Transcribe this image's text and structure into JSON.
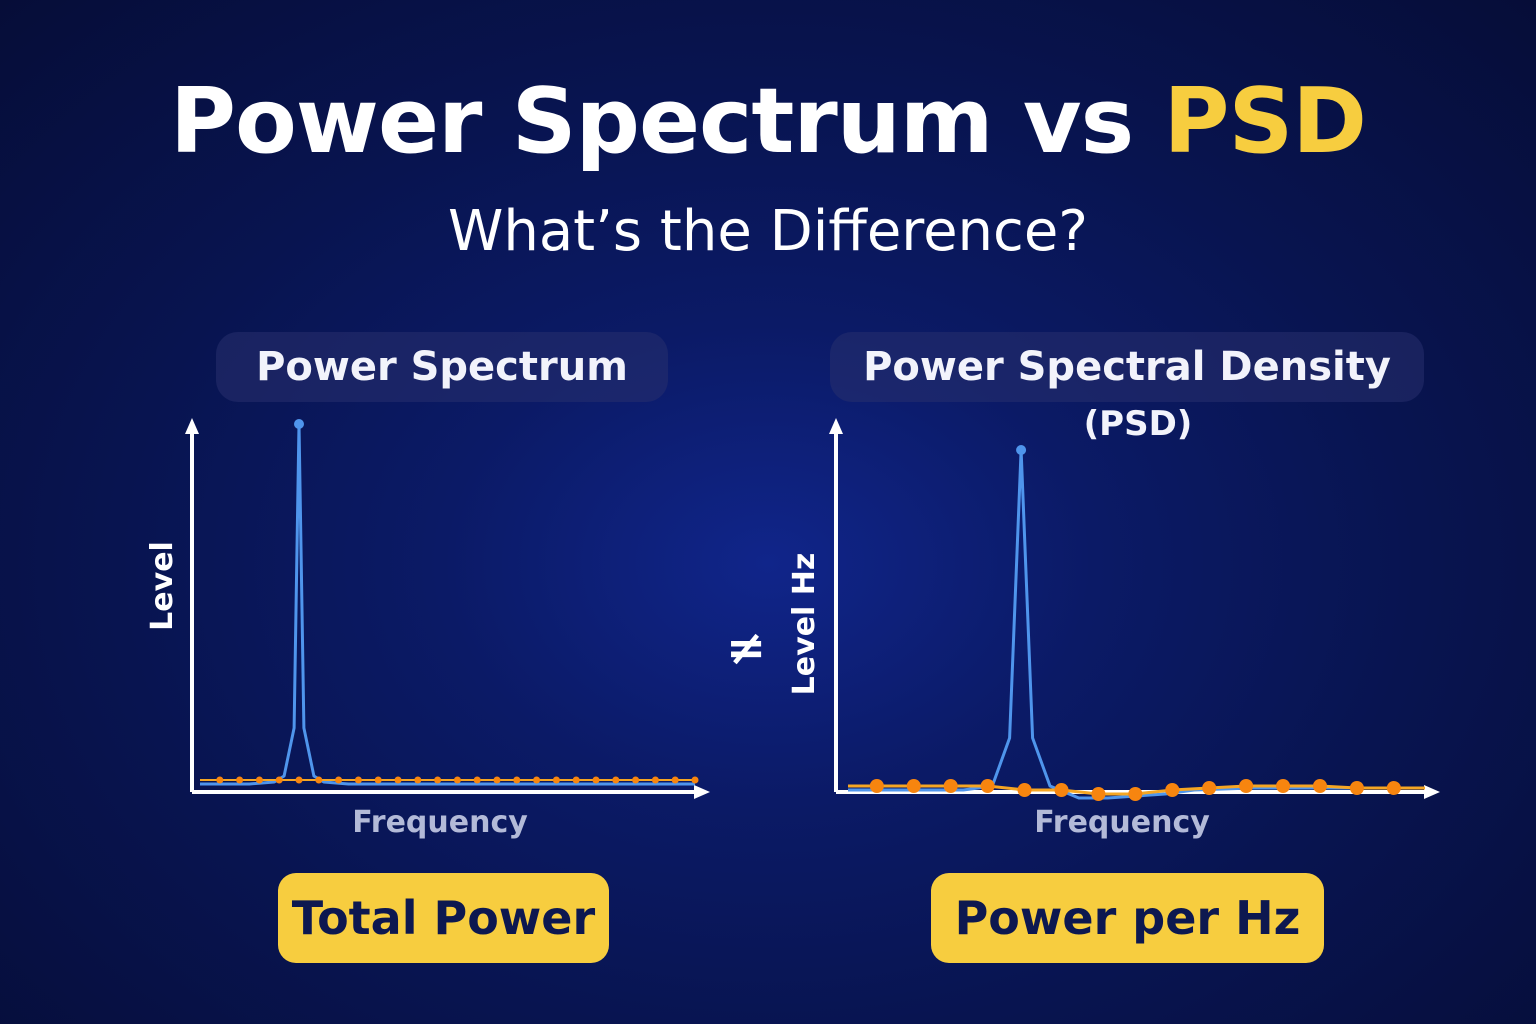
{
  "title": {
    "main": "Power Spectrum vs ",
    "accent": "PSD"
  },
  "subtitle": "What’s the Difference?",
  "panels": [
    {
      "header": "Power Spectrum",
      "y_label": "Level",
      "x_label": "Frequency",
      "badge": "Total Power"
    },
    {
      "header": "Power Spectral Density",
      "header_sub": "(PSD)",
      "y_label": "Level Hz",
      "x_label": "Frequency",
      "badge": "Power per Hz"
    }
  ],
  "comparison_symbol": "≠",
  "colors": {
    "background": "#0b1a66",
    "accent": "#f7cd3f",
    "spectrum_line": "#4f95ec",
    "floor_line": "#f5a623",
    "floor_points": "#f7850f"
  },
  "chart_data": [
    {
      "type": "line",
      "title": "Power Spectrum",
      "xlabel": "Frequency",
      "ylabel": "Level",
      "ylim": [
        0,
        100
      ],
      "series": [
        {
          "x": [
            0,
            5,
            10,
            15,
            17,
            19,
            20,
            21,
            23,
            25,
            30,
            35,
            40,
            45,
            50,
            55,
            60,
            65,
            70,
            75,
            80,
            85,
            90,
            95,
            100
          ],
          "values": [
            6,
            6,
            6,
            6.5,
            8,
            20,
            96,
            20,
            8,
            6.5,
            6,
            6,
            6,
            6,
            6,
            6,
            6,
            6,
            6,
            6,
            6,
            6,
            6,
            6,
            6
          ]
        },
        {
          "x": [
            4,
            8,
            12,
            16,
            20,
            24,
            28,
            32,
            36,
            40,
            44,
            48,
            52,
            56,
            60,
            64,
            68,
            72,
            76,
            80,
            84,
            88,
            92,
            96,
            100
          ],
          "values": [
            7,
            7,
            7,
            7,
            7,
            7,
            7,
            7,
            7,
            7,
            7,
            7,
            7,
            7,
            7,
            7,
            7,
            7,
            7,
            7,
            7,
            7,
            7,
            7,
            7
          ]
        }
      ]
    },
    {
      "type": "line",
      "title": "Power Spectral Density (PSD)",
      "xlabel": "Frequency",
      "ylabel": "Level Hz",
      "ylim": [
        0,
        100
      ],
      "series": [
        {
          "x": [
            0,
            10,
            20,
            25,
            28,
            30,
            32,
            35,
            40,
            45,
            50,
            55,
            60,
            70,
            80,
            90,
            100
          ],
          "values": [
            7,
            7,
            7,
            8,
            20,
            92,
            20,
            8,
            5,
            5,
            5.5,
            6,
            7,
            7.5,
            7.5,
            7.5,
            7.5
          ]
        },
        {
          "x": [
            5,
            11.4,
            17.8,
            24.2,
            30.6,
            37,
            43.4,
            49.8,
            56.2,
            62.6,
            69,
            75.4,
            81.8,
            88.2,
            94.6
          ],
          "values": [
            8,
            8,
            8,
            8,
            7,
            7,
            6,
            6,
            7,
            7.5,
            8,
            8,
            8,
            7.5,
            7.5
          ]
        }
      ]
    }
  ]
}
